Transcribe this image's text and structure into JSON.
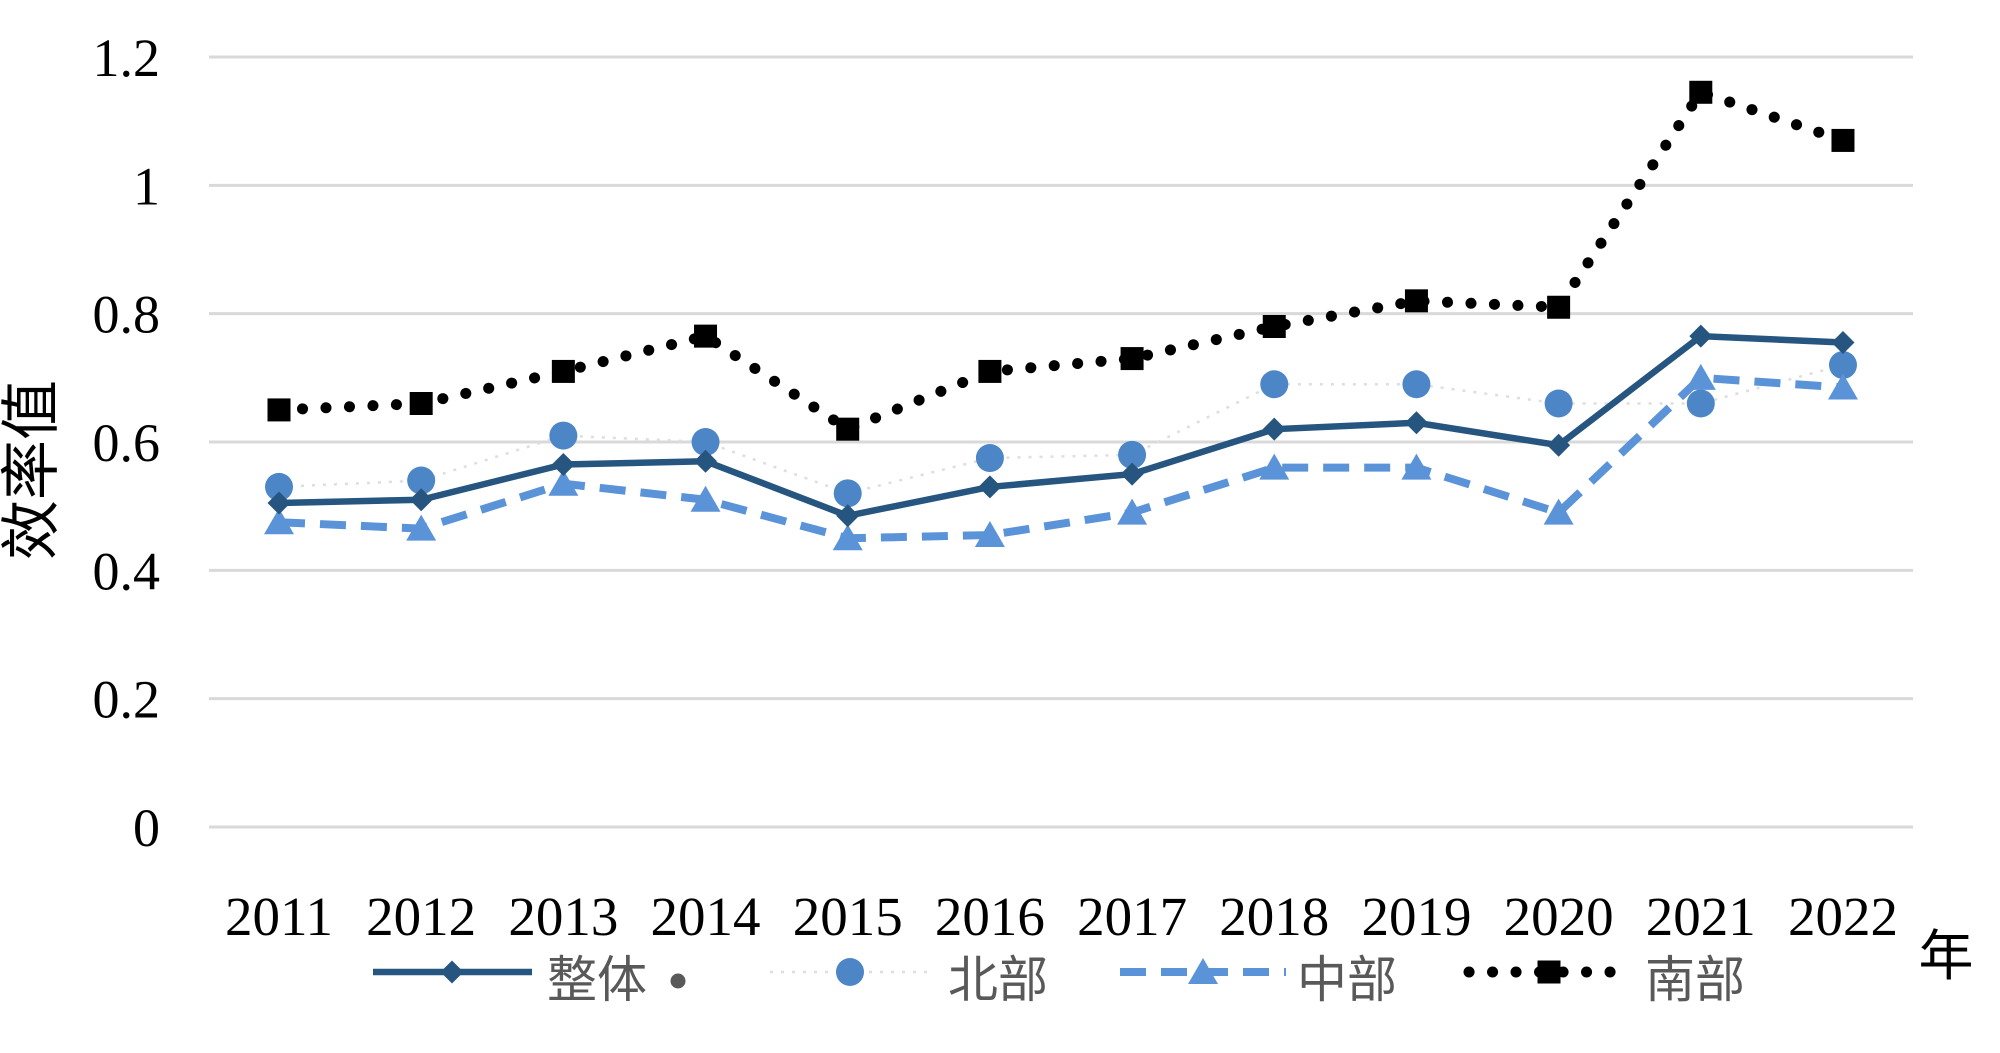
{
  "chart_data": {
    "type": "line",
    "title": "",
    "xlabel": "年",
    "ylabel": "效率值",
    "ylim": [
      0,
      1.2
    ],
    "yticks": [
      "0",
      "0.2",
      "0.4",
      "0.6",
      "0.8",
      "1",
      "1.2"
    ],
    "categories": [
      "2011",
      "2012",
      "2013",
      "2014",
      "2015",
      "2016",
      "2017",
      "2018",
      "2019",
      "2020",
      "2021",
      "2022"
    ],
    "grid": "horizontal",
    "legend_position": "bottom",
    "series": [
      {
        "key": "overall",
        "name": "整体",
        "marker": "diamond",
        "line": "solid",
        "values": [
          0.505,
          0.51,
          0.565,
          0.57,
          0.485,
          0.53,
          0.55,
          0.62,
          0.63,
          0.595,
          0.765,
          0.755
        ]
      },
      {
        "key": "north",
        "name": "北部",
        "marker": "circle",
        "line": "faint-dotted",
        "values": [
          0.53,
          0.54,
          0.61,
          0.6,
          0.52,
          0.575,
          0.58,
          0.69,
          0.69,
          0.66,
          0.66,
          0.72
        ]
      },
      {
        "key": "central",
        "name": "中部",
        "marker": "triangle",
        "line": "dashed",
        "values": [
          0.475,
          0.465,
          0.535,
          0.51,
          0.45,
          0.455,
          0.49,
          0.56,
          0.56,
          0.49,
          0.7,
          0.685
        ]
      },
      {
        "key": "south",
        "name": "南部",
        "marker": "square",
        "line": "dotted",
        "values": [
          0.65,
          0.66,
          0.71,
          0.765,
          0.62,
          0.71,
          0.73,
          0.78,
          0.82,
          0.81,
          1.145,
          1.07
        ]
      }
    ],
    "colors": {
      "overall": "#265580",
      "north": "#4C86C6",
      "north_connector": "#DCDEE2",
      "central": "#5B93D8",
      "south": "#000000",
      "grid": "#D9D9D9",
      "axis_text": "#000000",
      "legend_text": "#595959",
      "legend_extra_dot": "#595959"
    },
    "legend_extra_dot": "•"
  }
}
